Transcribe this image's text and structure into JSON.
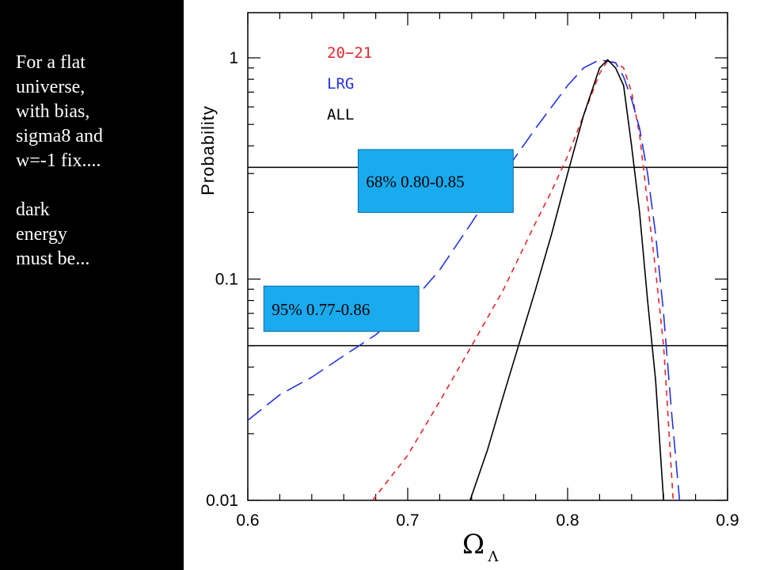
{
  "sidebar": {
    "lines_1": [
      "For a flat",
      "universe,",
      "with bias,",
      "sigma8 and",
      "w=-1 fix...."
    ],
    "lines_2": [
      "dark",
      "energy",
      "must be..."
    ]
  },
  "chart_data": {
    "type": "line",
    "xlabel": "Ω",
    "xlabel_subscript": "Λ",
    "ylabel": "Probability",
    "xlim": [
      0.6,
      0.9
    ],
    "ylim": [
      0.01,
      1.6
    ],
    "yscale": "log",
    "x_ticks": [
      "0.6",
      "0.7",
      "0.8",
      "0.9"
    ],
    "y_ticks": [
      "0.01",
      "0.1",
      "1"
    ],
    "legend": {
      "placement": "top-left"
    },
    "series": [
      {
        "name": "20−21",
        "color": "#e8252a",
        "style": "short-dash",
        "points": [
          [
            0.678,
            0.01
          ],
          [
            0.7,
            0.016
          ],
          [
            0.72,
            0.028
          ],
          [
            0.74,
            0.05
          ],
          [
            0.76,
            0.09
          ],
          [
            0.78,
            0.18
          ],
          [
            0.79,
            0.25
          ],
          [
            0.8,
            0.36
          ],
          [
            0.81,
            0.55
          ],
          [
            0.82,
            0.85
          ],
          [
            0.825,
            0.97
          ],
          [
            0.83,
            0.95
          ],
          [
            0.835,
            0.9
          ],
          [
            0.84,
            0.7
          ],
          [
            0.845,
            0.45
          ],
          [
            0.85,
            0.22
          ],
          [
            0.855,
            0.11
          ],
          [
            0.86,
            0.05
          ],
          [
            0.862,
            0.03
          ],
          [
            0.866,
            0.01
          ]
        ]
      },
      {
        "name": "LRG",
        "color": "#2433e0",
        "style": "long-dash",
        "points": [
          [
            0.6,
            0.023
          ],
          [
            0.62,
            0.03
          ],
          [
            0.64,
            0.036
          ],
          [
            0.66,
            0.045
          ],
          [
            0.68,
            0.056
          ],
          [
            0.7,
            0.075
          ],
          [
            0.72,
            0.11
          ],
          [
            0.74,
            0.18
          ],
          [
            0.76,
            0.3
          ],
          [
            0.78,
            0.48
          ],
          [
            0.8,
            0.75
          ],
          [
            0.81,
            0.9
          ],
          [
            0.82,
            0.98
          ],
          [
            0.83,
            0.95
          ],
          [
            0.835,
            0.82
          ],
          [
            0.84,
            0.65
          ],
          [
            0.845,
            0.48
          ],
          [
            0.85,
            0.3
          ],
          [
            0.855,
            0.16
          ],
          [
            0.86,
            0.07
          ],
          [
            0.865,
            0.025
          ],
          [
            0.87,
            0.01
          ]
        ]
      },
      {
        "name": "ALL",
        "color": "#000000",
        "style": "solid",
        "points": [
          [
            0.739,
            0.01
          ],
          [
            0.75,
            0.017
          ],
          [
            0.76,
            0.03
          ],
          [
            0.77,
            0.052
          ],
          [
            0.78,
            0.09
          ],
          [
            0.79,
            0.16
          ],
          [
            0.8,
            0.3
          ],
          [
            0.81,
            0.55
          ],
          [
            0.82,
            0.9
          ],
          [
            0.825,
            0.98
          ],
          [
            0.83,
            0.9
          ],
          [
            0.835,
            0.75
          ],
          [
            0.84,
            0.4
          ],
          [
            0.845,
            0.2
          ],
          [
            0.85,
            0.08
          ],
          [
            0.855,
            0.035
          ],
          [
            0.86,
            0.01
          ]
        ]
      }
    ],
    "reference_lines": [
      {
        "y": 0.32,
        "label": "68%  0.80-0.85"
      },
      {
        "y": 0.05,
        "label": "95%  0.77-0.86"
      }
    ],
    "annotation_box_color": "#1aaaee"
  }
}
